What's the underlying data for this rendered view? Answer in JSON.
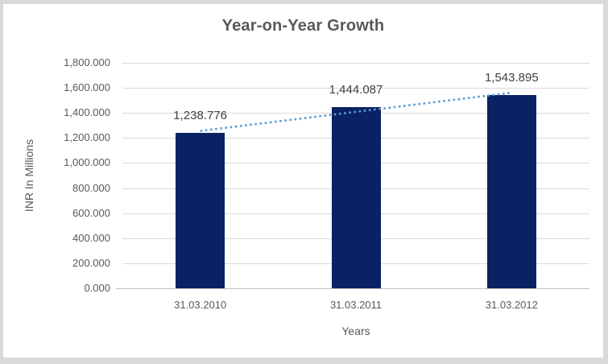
{
  "frame": {
    "background_color": "#d9d9d9",
    "chart_background_color": "#ffffff"
  },
  "chart_data": {
    "type": "bar",
    "title": "Year-on-Year Growth",
    "xlabel": "Years",
    "ylabel": "INR In Millions",
    "categories": [
      "31.03.2010",
      "31.03.2011",
      "31.03.2012"
    ],
    "values": [
      1238.776,
      1444.087,
      1543.895
    ],
    "value_labels": [
      "1,238.776",
      "1,444.087",
      "1,543.895"
    ],
    "ylim": [
      0,
      1800
    ],
    "ytick_step": 200,
    "ytick_labels": [
      "0.000",
      "200.000",
      "400.000",
      "600.000",
      "800.000",
      "1,000.000",
      "1,200.000",
      "1,400.000",
      "1,600.000",
      "1,800.000"
    ],
    "grid": true,
    "legend": "none",
    "trendline": {
      "kind": "linear",
      "style": "dotted",
      "color": "#5b9bd5"
    },
    "colors": {
      "bar": "#0a2263",
      "title_text": "#595959",
      "axis_text": "#595959",
      "data_label_text": "#404040",
      "gridline": "#d9d9d9",
      "axis_line": "#c0c0c0"
    }
  }
}
